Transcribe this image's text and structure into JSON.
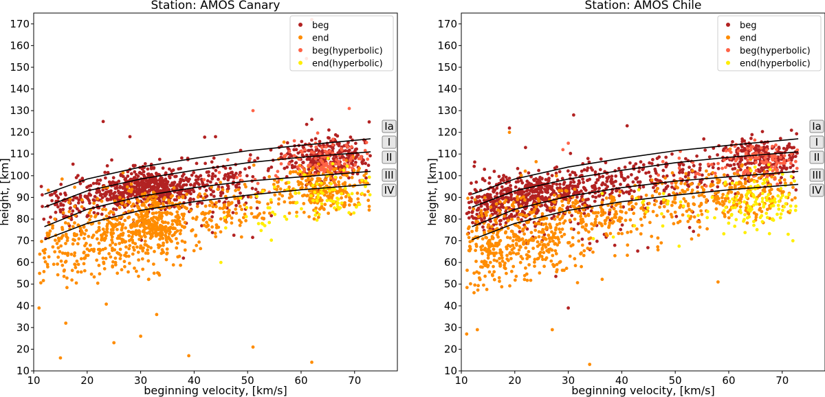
{
  "figure": {
    "colors": {
      "beg": "#b22222",
      "end": "#ff8c00",
      "beg_hyperbolic": "#ff6347",
      "end_hyperbolic": "#ffee00",
      "curve": "#000000",
      "frame": "#000000",
      "region_box_fill": "#e6e6e6",
      "region_box_stroke": "#888888",
      "legend_stroke": "#cccccc"
    },
    "region_labels": [
      "Ia",
      "I",
      "II",
      "III",
      "IV"
    ]
  },
  "chart_data": [
    {
      "type": "scatter",
      "title": "Station: AMOS Canary",
      "xlabel": "beginning velocity, [km/s]",
      "ylabel": "height, [km]",
      "xlim": [
        10,
        78
      ],
      "ylim": [
        10,
        175
      ],
      "xticks": [
        10,
        20,
        30,
        40,
        50,
        60,
        70
      ],
      "yticks": [
        10,
        20,
        30,
        40,
        50,
        60,
        70,
        80,
        90,
        100,
        110,
        120,
        130,
        140,
        150,
        160,
        170
      ],
      "legend": [
        "beg",
        "end",
        "beg(hyperbolic)",
        "end(hyperbolic)"
      ],
      "legend_position": "top-right",
      "curves": [
        {
          "name": "Ia",
          "x": [
            12,
            20,
            30,
            40,
            50,
            60,
            73
          ],
          "y": [
            91.5,
            98.5,
            104,
            108,
            111.5,
            114,
            117
          ]
        },
        {
          "name": "I",
          "x": [
            12,
            20,
            30,
            40,
            50,
            60,
            73
          ],
          "y": [
            85.5,
            93,
            98.5,
            102.5,
            106,
            108.5,
            111
          ]
        },
        {
          "name": "II",
          "x": [
            12,
            20,
            30,
            40,
            50,
            60,
            73
          ],
          "y": [
            76.5,
            84.5,
            90.5,
            94.5,
            97.5,
            99.5,
            102
          ]
        },
        {
          "name": "III",
          "x": [
            12,
            20,
            30,
            40,
            50,
            60,
            73
          ],
          "y": [
            70.5,
            78,
            84,
            88,
            91,
            93.5,
            96
          ]
        }
      ],
      "series": [
        {
          "name": "beg",
          "clusters": [
            {
              "cx": 33,
              "cy": 95,
              "sx": 4,
              "sy": 4.5,
              "n": 430
            },
            {
              "cx": 24,
              "cy": 91,
              "sx": 4,
              "sy": 4.5,
              "n": 170
            },
            {
              "cx": 16,
              "cy": 86,
              "sx": 2.5,
              "sy": 5,
              "n": 60
            },
            {
              "cx": 46,
              "cy": 98,
              "sx": 4,
              "sy": 5,
              "n": 110
            },
            {
              "cx": 65,
              "cy": 108,
              "sx": 4.5,
              "sy": 5,
              "n": 330
            },
            {
              "cx": 40,
              "cy": 86,
              "sx": 9,
              "sy": 8,
              "n": 40
            }
          ],
          "outliers": [
            [
              23,
              125
            ],
            [
              28,
              118
            ],
            [
              44,
              118
            ],
            [
              62,
              126
            ],
            [
              38,
              62
            ]
          ]
        },
        {
          "name": "end",
          "clusters": [
            {
              "cx": 32,
              "cy": 77,
              "sx": 4,
              "sy": 8,
              "n": 390
            },
            {
              "cx": 24,
              "cy": 72,
              "sx": 5,
              "sy": 9,
              "n": 200
            },
            {
              "cx": 15,
              "cy": 66,
              "sx": 2.8,
              "sy": 10,
              "n": 90
            },
            {
              "cx": 45,
              "cy": 85,
              "sx": 5,
              "sy": 6,
              "n": 110
            },
            {
              "cx": 64,
              "cy": 94,
              "sx": 5,
              "sy": 6,
              "n": 280
            }
          ],
          "outliers": [
            [
              11,
              39
            ],
            [
              16,
              32
            ],
            [
              25,
              23
            ],
            [
              30,
              26
            ],
            [
              33,
              36
            ],
            [
              39,
              17
            ],
            [
              51,
              21
            ],
            [
              62,
              14
            ],
            [
              15,
              16
            ]
          ]
        },
        {
          "name": "beg(hyperbolic)",
          "clusters": [
            {
              "cx": 66,
              "cy": 108,
              "sx": 4,
              "sy": 5,
              "n": 100
            },
            {
              "cx": 52,
              "cy": 102,
              "sx": 5,
              "sy": 4,
              "n": 20
            }
          ],
          "outliers": [
            [
              51,
              130
            ],
            [
              69,
              131
            ],
            [
              61,
              154
            ],
            [
              62,
              172
            ]
          ]
        },
        {
          "name": "end(hyperbolic)",
          "clusters": [
            {
              "cx": 64,
              "cy": 90,
              "sx": 5,
              "sy": 7,
              "n": 80
            },
            {
              "cx": 53,
              "cy": 82,
              "sx": 4,
              "sy": 6,
              "n": 20
            }
          ],
          "outliers": [
            [
              45,
              60
            ]
          ]
        }
      ]
    },
    {
      "type": "scatter",
      "title": "Station: AMOS Chile",
      "xlabel": "beginning velocity, [km/s]",
      "ylabel": "height, [km]",
      "xlim": [
        10,
        78
      ],
      "ylim": [
        10,
        175
      ],
      "xticks": [
        10,
        20,
        30,
        40,
        50,
        60,
        70
      ],
      "yticks": [
        10,
        20,
        30,
        40,
        50,
        60,
        70,
        80,
        90,
        100,
        110,
        120,
        130,
        140,
        150,
        160,
        170
      ],
      "legend": [
        "beg",
        "end",
        "beg(hyperbolic)",
        "end(hyperbolic)"
      ],
      "legend_position": "top-right",
      "curves": [
        {
          "name": "Ia",
          "x": [
            12,
            20,
            30,
            40,
            50,
            60,
            73
          ],
          "y": [
            91.5,
            98.5,
            104,
            108,
            111.5,
            114,
            117
          ]
        },
        {
          "name": "I",
          "x": [
            12,
            20,
            30,
            40,
            50,
            60,
            73
          ],
          "y": [
            85.5,
            93,
            98.5,
            102.5,
            106,
            108.5,
            111
          ]
        },
        {
          "name": "II",
          "x": [
            12,
            20,
            30,
            40,
            50,
            60,
            73
          ],
          "y": [
            76.5,
            84.5,
            90.5,
            94.5,
            97.5,
            99.5,
            102
          ]
        },
        {
          "name": "III",
          "x": [
            12,
            20,
            30,
            40,
            50,
            60,
            73
          ],
          "y": [
            70.5,
            78,
            84,
            88,
            91,
            93.5,
            96
          ]
        }
      ],
      "series": [
        {
          "name": "beg",
          "clusters": [
            {
              "cx": 24,
              "cy": 91,
              "sx": 5,
              "sy": 5,
              "n": 380
            },
            {
              "cx": 15,
              "cy": 84,
              "sx": 3,
              "sy": 5,
              "n": 150
            },
            {
              "cx": 35,
              "cy": 96,
              "sx": 5,
              "sy": 5,
              "n": 170
            },
            {
              "cx": 50,
              "cy": 100,
              "sx": 5,
              "sy": 5,
              "n": 120
            },
            {
              "cx": 66,
              "cy": 108,
              "sx": 4,
              "sy": 5,
              "n": 260
            },
            {
              "cx": 30,
              "cy": 78,
              "sx": 10,
              "sy": 9,
              "n": 60
            }
          ],
          "outliers": [
            [
              19,
              122
            ],
            [
              22,
              113
            ],
            [
              31,
              128
            ],
            [
              41,
              123
            ],
            [
              30,
              39
            ]
          ]
        },
        {
          "name": "end",
          "clusters": [
            {
              "cx": 23,
              "cy": 73,
              "sx": 6,
              "sy": 10,
              "n": 330
            },
            {
              "cx": 15,
              "cy": 66,
              "sx": 3,
              "sy": 11,
              "n": 160
            },
            {
              "cx": 37,
              "cy": 82,
              "sx": 6,
              "sy": 7,
              "n": 160
            },
            {
              "cx": 52,
              "cy": 88,
              "sx": 5,
              "sy": 6,
              "n": 100
            },
            {
              "cx": 64,
              "cy": 92,
              "sx": 5,
              "sy": 6,
              "n": 190
            }
          ],
          "outliers": [
            [
              11,
              27
            ],
            [
              13,
              29
            ],
            [
              27,
              29
            ],
            [
              34,
              13
            ],
            [
              19,
              120
            ],
            [
              58,
              51
            ]
          ]
        },
        {
          "name": "beg(hyperbolic)",
          "clusters": [
            {
              "cx": 66,
              "cy": 108,
              "sx": 4,
              "sy": 5,
              "n": 90
            },
            {
              "cx": 55,
              "cy": 103,
              "sx": 5,
              "sy": 4,
              "n": 20
            }
          ],
          "outliers": [
            [
              30,
              115
            ],
            [
              29,
              112
            ]
          ]
        },
        {
          "name": "end(hyperbolic)",
          "clusters": [
            {
              "cx": 66,
              "cy": 88,
              "sx": 4,
              "sy": 7,
              "n": 120
            },
            {
              "cx": 50,
              "cy": 82,
              "sx": 6,
              "sy": 6,
              "n": 25
            }
          ],
          "outliers": [
            [
              72,
              70
            ]
          ]
        }
      ]
    }
  ]
}
